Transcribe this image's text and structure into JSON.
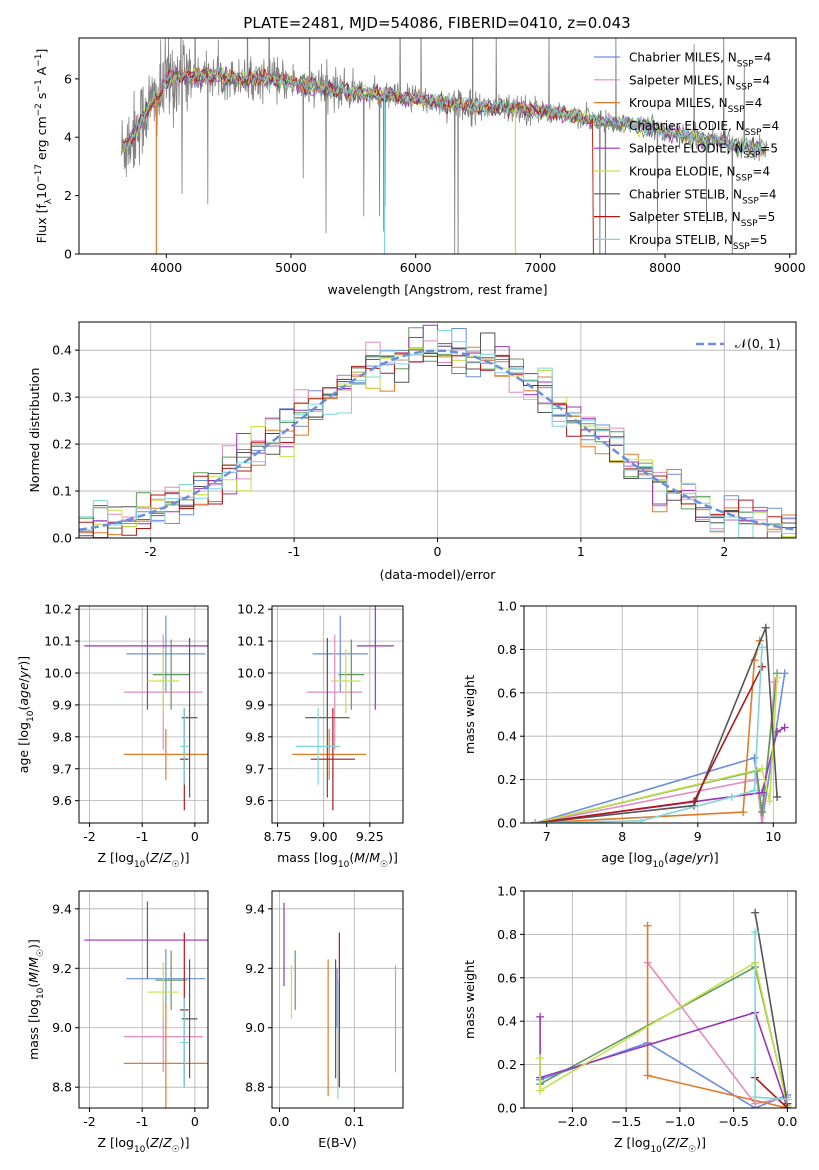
{
  "figure_title": "PLATE=2481, MJD=54086, FIBERID=0410, z=0.043",
  "colors": {
    "Chabrier MILES": "#6a8fdc",
    "Salpeter MILES": "#e28cc0",
    "Kroupa MILES": "#e07b2a",
    "Chabrier ELODIE": "#5f9a5f",
    "Salpeter ELODIE": "#9a35b8",
    "Kroupa ELODIE": "#c8e04a",
    "Chabrier STELIB": "#555555",
    "Salpeter STELIB": "#b01818",
    "Kroupa STELIB": "#7fd6d9",
    "data": "#808080",
    "normal": "#6a8fdc"
  },
  "chart_data": [
    {
      "type": "line",
      "xlabel": "wavelength [Angstrom, rest frame]",
      "ylabel": "Flux [f_λ10^-17 erg cm^-2 s^-1 A^-1]",
      "xlim": [
        3300,
        9050
      ],
      "ylim": [
        0,
        7.4
      ],
      "xticks": [
        4000,
        5000,
        6000,
        7000,
        8000,
        9000
      ],
      "yticks": [
        0,
        2,
        4,
        6
      ],
      "legend_position": "right",
      "legend": [
        {
          "name": "Chabrier MILES",
          "nssp": "4"
        },
        {
          "name": "Salpeter MILES",
          "nssp": "4"
        },
        {
          "name": "Kroupa MILES",
          "nssp": "4"
        },
        {
          "name": "Chabrier ELODIE",
          "nssp": "4"
        },
        {
          "name": "Salpeter ELODIE",
          "nssp": "5"
        },
        {
          "name": "Kroupa ELODIE",
          "nssp": "4"
        },
        {
          "name": "Chabrier STELIB",
          "nssp": "4"
        },
        {
          "name": "Salpeter STELIB",
          "nssp": "5"
        },
        {
          "name": "Kroupa STELIB",
          "nssp": "5"
        }
      ],
      "continuum": {
        "x": [
          3650,
          3750,
          3850,
          3950,
          4000,
          4100,
          4200,
          4400,
          4600,
          4800,
          5000,
          5200,
          5400,
          5600,
          5800,
          6000,
          6200,
          6400,
          6600,
          6800,
          7000,
          7200,
          7400,
          7600,
          7800,
          8000,
          8200,
          8400,
          8600,
          8800
        ],
        "y": [
          3.6,
          4.2,
          5.0,
          5.4,
          6.0,
          6.1,
          6.1,
          6.1,
          6.0,
          6.0,
          5.9,
          5.7,
          5.6,
          5.5,
          5.4,
          5.3,
          5.2,
          5.1,
          5.0,
          5.0,
          4.9,
          4.8,
          4.6,
          4.5,
          4.4,
          4.2,
          4.0,
          3.9,
          3.7,
          3.6
        ]
      }
    },
    {
      "type": "bar",
      "xlabel": "(data-model)/error",
      "ylabel": "Normed distribution",
      "xlim": [
        -2.5,
        2.5
      ],
      "ylim": [
        0,
        0.46
      ],
      "xticks": [
        -2,
        -1,
        0,
        1,
        2
      ],
      "yticks": [
        0.0,
        0.1,
        0.2,
        0.3,
        0.4
      ],
      "bin_width": 0.1,
      "bin_start": -2.5,
      "legend": [
        "𝒩(0, 1)"
      ],
      "legend_position": "upper right"
    },
    {
      "type": "scatter",
      "xlabel": "Z [log10(Z/Z☉)]",
      "ylabel": "age  [log10(age/yr)]",
      "xlim": [
        -2.2,
        0.25
      ],
      "ylim": [
        9.53,
        10.21
      ],
      "xticks": [
        -2,
        -1,
        0
      ],
      "yticks": [
        9.6,
        9.7,
        9.8,
        9.9,
        10.0,
        10.1,
        10.2
      ],
      "points": [
        {
          "name": "Chabrier MILES",
          "x": -0.55,
          "y": 10.06,
          "xerr": 0.75,
          "yerr": 0.12
        },
        {
          "name": "Salpeter MILES",
          "x": -0.6,
          "y": 9.94,
          "xerr": 0.75,
          "yerr": 0.18
        },
        {
          "name": "Kroupa MILES",
          "x": -0.55,
          "y": 9.745,
          "xerr": 0.8,
          "yerr": 0.08
        },
        {
          "name": "Chabrier ELODIE",
          "x": -0.45,
          "y": 9.995,
          "xerr": 0.35,
          "yerr": 0.11
        },
        {
          "name": "Salpeter ELODIE",
          "x": -0.9,
          "y": 10.085,
          "xerr": 1.2,
          "yerr": 0.2
        },
        {
          "name": "Kroupa ELODIE",
          "x": -0.6,
          "y": 9.975,
          "xerr": 0.3,
          "yerr": 0.1
        },
        {
          "name": "Chabrier STELIB",
          "x": -0.1,
          "y": 9.86,
          "xerr": 0.15,
          "yerr": 0.25
        },
        {
          "name": "Salpeter STELIB",
          "x": -0.2,
          "y": 9.73,
          "xerr": 0.08,
          "yerr": 0.16
        },
        {
          "name": "Kroupa STELIB",
          "x": -0.2,
          "y": 9.77,
          "xerr": 0.08,
          "yerr": 0.12
        }
      ]
    },
    {
      "type": "scatter",
      "xlabel": "mass [log10(M/M☉)]",
      "ylabel": "",
      "xlim": [
        8.72,
        9.43
      ],
      "ylim": [
        9.53,
        10.21
      ],
      "xticks": [
        8.75,
        9.0,
        9.25
      ],
      "yticks": [
        9.6,
        9.7,
        9.8,
        9.9,
        10.0,
        10.1,
        10.2
      ],
      "points": [
        {
          "name": "Chabrier MILES",
          "x": 9.09,
          "y": 10.06,
          "xerr": 0.15,
          "yerr": 0.12
        },
        {
          "name": "Salpeter MILES",
          "x": 9.06,
          "y": 9.94,
          "xerr": 0.15,
          "yerr": 0.18
        },
        {
          "name": "Kroupa MILES",
          "x": 9.03,
          "y": 9.745,
          "xerr": 0.2,
          "yerr": 0.08
        },
        {
          "name": "Chabrier ELODIE",
          "x": 9.15,
          "y": 9.995,
          "xerr": 0.07,
          "yerr": 0.11
        },
        {
          "name": "Salpeter ELODIE",
          "x": 9.28,
          "y": 10.085,
          "xerr": 0.1,
          "yerr": 0.2
        },
        {
          "name": "Kroupa ELODIE",
          "x": 9.12,
          "y": 9.975,
          "xerr": 0.08,
          "yerr": 0.1
        },
        {
          "name": "Chabrier STELIB",
          "x": 9.02,
          "y": 9.86,
          "xerr": 0.12,
          "yerr": 0.25
        },
        {
          "name": "Salpeter STELIB",
          "x": 9.05,
          "y": 9.73,
          "xerr": 0.12,
          "yerr": 0.16
        },
        {
          "name": "Kroupa STELIB",
          "x": 8.97,
          "y": 9.77,
          "xerr": 0.12,
          "yerr": 0.12
        }
      ]
    },
    {
      "type": "line",
      "xlabel": "age  [log10(age/yr)]",
      "ylabel": "mass weight",
      "xlim": [
        6.7,
        10.3
      ],
      "ylim": [
        0,
        1.0
      ],
      "xticks": [
        7,
        8,
        9,
        10
      ],
      "yticks": [
        0.0,
        0.2,
        0.4,
        0.6,
        0.8,
        1.0
      ],
      "series": [
        {
          "name": "Chabrier MILES",
          "x": [
            6.85,
            9.75,
            9.85,
            10.15
          ],
          "y": [
            0.0,
            0.3,
            0.0,
            0.69
          ]
        },
        {
          "name": "Salpeter MILES",
          "x": [
            6.85,
            9.78,
            9.85,
            10.02
          ],
          "y": [
            0.0,
            0.2,
            0.0,
            0.65
          ]
        },
        {
          "name": "Kroupa MILES",
          "x": [
            6.85,
            9.6,
            9.75,
            9.82
          ],
          "y": [
            0.0,
            0.05,
            0.75,
            0.84
          ]
        },
        {
          "name": "Chabrier ELODIE",
          "x": [
            6.85,
            9.78,
            9.85,
            10.05
          ],
          "y": [
            0.0,
            0.24,
            0.05,
            0.69
          ]
        },
        {
          "name": "Salpeter ELODIE",
          "x": [
            6.85,
            9.85,
            10.05,
            10.15
          ],
          "y": [
            0.0,
            0.14,
            0.42,
            0.44
          ]
        },
        {
          "name": "Kroupa ELODIE",
          "x": [
            6.85,
            9.85,
            9.95,
            10.05
          ],
          "y": [
            0.0,
            0.25,
            0.1,
            0.67
          ]
        },
        {
          "name": "Chabrier STELIB",
          "x": [
            6.85,
            8.95,
            9.9,
            10.05
          ],
          "y": [
            0.0,
            0.08,
            0.9,
            0.12
          ]
        },
        {
          "name": "Salpeter STELIB",
          "x": [
            6.85,
            8.95,
            9.85
          ],
          "y": [
            0.0,
            0.1,
            0.72
          ]
        },
        {
          "name": "Kroupa STELIB",
          "x": [
            6.85,
            8.25,
            9.45,
            9.75,
            9.85
          ],
          "y": [
            0.0,
            0.01,
            0.12,
            0.15,
            0.81
          ]
        }
      ]
    },
    {
      "type": "scatter",
      "xlabel": "Z [log10(Z/Z☉)]",
      "ylabel": "mass [log10(M/M☉)]",
      "xlim": [
        -2.2,
        0.25
      ],
      "ylim": [
        8.73,
        9.46
      ],
      "xticks": [
        -2,
        -1,
        0
      ],
      "yticks": [
        8.8,
        9.0,
        9.2,
        9.4
      ],
      "points": [
        {
          "name": "Chabrier MILES",
          "x": -0.55,
          "y": 9.165,
          "xerr": 0.75,
          "yerr": 0.1
        },
        {
          "name": "Salpeter MILES",
          "x": -0.6,
          "y": 8.97,
          "xerr": 0.75,
          "yerr": 0.12
        },
        {
          "name": "Kroupa MILES",
          "x": -0.55,
          "y": 8.88,
          "xerr": 0.8,
          "yerr": 0.2
        },
        {
          "name": "Chabrier ELODIE",
          "x": -0.45,
          "y": 9.16,
          "xerr": 0.3,
          "yerr": 0.1
        },
        {
          "name": "Salpeter ELODIE",
          "x": -0.9,
          "y": 9.295,
          "xerr": 1.2,
          "yerr": 0.13
        },
        {
          "name": "Kroupa ELODIE",
          "x": -0.6,
          "y": 9.12,
          "xerr": 0.3,
          "yerr": 0.1
        },
        {
          "name": "Chabrier STELIB",
          "x": -0.1,
          "y": 9.03,
          "xerr": 0.15,
          "yerr": 0.2
        },
        {
          "name": "Salpeter STELIB",
          "x": -0.2,
          "y": 9.06,
          "xerr": 0.08,
          "yerr": 0.26
        },
        {
          "name": "Kroupa STELIB",
          "x": -0.2,
          "y": 8.95,
          "xerr": 0.08,
          "yerr": 0.15
        }
      ]
    },
    {
      "type": "scatter",
      "xlabel": "E(B-V)",
      "ylabel": "",
      "xlim": [
        -0.01,
        0.165
      ],
      "ylim": [
        8.73,
        9.46
      ],
      "xticks": [
        0.0,
        0.1
      ],
      "yticks": [
        8.8,
        9.0,
        9.2,
        9.4
      ],
      "points": [
        {
          "name": "Chabrier MILES",
          "x": 0.077,
          "y": 9.1,
          "yerr": 0.1
        },
        {
          "name": "Salpeter MILES",
          "x": 0.155,
          "y": 9.03,
          "yerr": 0.18
        },
        {
          "name": "Kroupa MILES",
          "x": 0.065,
          "y": 9.0,
          "yerr": 0.23
        },
        {
          "name": "Chabrier ELODIE",
          "x": 0.021,
          "y": 9.16,
          "yerr": 0.1
        },
        {
          "name": "Salpeter ELODIE",
          "x": 0.006,
          "y": 9.28,
          "yerr": 0.14
        },
        {
          "name": "Kroupa ELODIE",
          "x": 0.016,
          "y": 9.12,
          "yerr": 0.09
        },
        {
          "name": "Chabrier STELIB",
          "x": 0.075,
          "y": 9.03,
          "yerr": 0.2
        },
        {
          "name": "Salpeter STELIB",
          "x": 0.08,
          "y": 9.06,
          "yerr": 0.26
        },
        {
          "name": "Kroupa STELIB",
          "x": 0.078,
          "y": 8.96,
          "yerr": 0.2
        }
      ]
    },
    {
      "type": "line",
      "xlabel": "Z [log10(Z/Z☉)]",
      "ylabel": "mass weight",
      "xlim": [
        -2.45,
        0.08
      ],
      "ylim": [
        0,
        1.0
      ],
      "xticks": [
        -2.0,
        -1.5,
        -1.0,
        -0.5,
        0.0
      ],
      "yticks": [
        0.0,
        0.2,
        0.4,
        0.6,
        0.8,
        1.0
      ],
      "series": [
        {
          "name": "Chabrier MILES",
          "x": [
            -2.3,
            -1.3,
            -0.3,
            0.0
          ],
          "y": [
            0.13,
            0.3,
            0.0,
            0.06
          ]
        },
        {
          "name": "Salpeter MILES",
          "x": [
            -1.3,
            -0.3,
            0.0
          ],
          "y": [
            0.67,
            0.02,
            0.05
          ]
        },
        {
          "name": "Kroupa MILES",
          "x": [
            -1.3,
            -1.3,
            0.0,
            0.0
          ],
          "y": [
            0.84,
            0.15,
            0.0,
            0.01
          ]
        },
        {
          "name": "Chabrier ELODIE",
          "x": [
            -2.3,
            -0.3,
            0.0
          ],
          "y": [
            0.11,
            0.65,
            0.02
          ]
        },
        {
          "name": "Salpeter ELODIE",
          "x": [
            -2.3,
            -2.3,
            -0.3,
            0.0
          ],
          "y": [
            0.42,
            0.14,
            0.44,
            0.0
          ]
        },
        {
          "name": "Kroupa ELODIE",
          "x": [
            -2.3,
            -2.3,
            -0.3,
            0.0
          ],
          "y": [
            0.23,
            0.08,
            0.67,
            0.01
          ]
        },
        {
          "name": "Chabrier STELIB",
          "x": [
            -0.3,
            0.0
          ],
          "y": [
            0.9,
            0.02
          ]
        },
        {
          "name": "Salpeter STELIB",
          "x": [
            -0.3,
            0.0
          ],
          "y": [
            0.14,
            0.0
          ]
        },
        {
          "name": "Kroupa STELIB",
          "x": [
            -0.3,
            -0.3,
            0.0
          ],
          "y": [
            0.81,
            0.05,
            0.04
          ]
        }
      ]
    }
  ]
}
